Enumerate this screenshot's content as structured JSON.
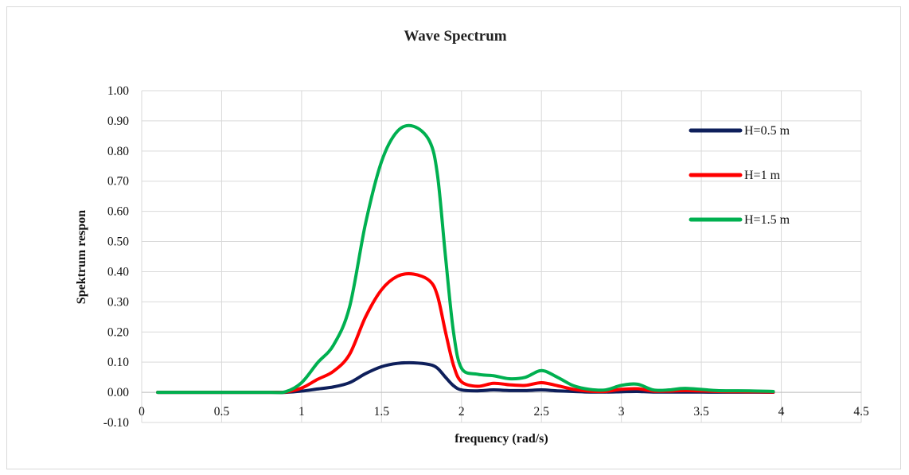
{
  "chart_data": {
    "type": "line",
    "title": "Wave Spectrum",
    "xlabel": "frequency (rad/s)",
    "ylabel": "Spektrum respon",
    "xlim": [
      0,
      4.5
    ],
    "ylim": [
      -0.1,
      1.0
    ],
    "x_ticks": [
      "0",
      "0.5",
      "1",
      "1.5",
      "2",
      "2.5",
      "3",
      "3.5",
      "4",
      "4.5"
    ],
    "y_ticks": [
      "-0.10",
      "0.00",
      "0.10",
      "0.20",
      "0.30",
      "0.40",
      "0.50",
      "0.60",
      "0.70",
      "0.80",
      "0.90",
      "1.00"
    ],
    "grid": true,
    "legend_position": "right",
    "series": [
      {
        "name": "H=0.5 m",
        "color": "#0e1f5b",
        "points": [
          [
            0.1,
            0
          ],
          [
            0.5,
            0
          ],
          [
            0.8,
            0
          ],
          [
            0.9,
            0
          ],
          [
            1.0,
            0.004
          ],
          [
            1.1,
            0.011
          ],
          [
            1.2,
            0.018
          ],
          [
            1.3,
            0.032
          ],
          [
            1.4,
            0.062
          ],
          [
            1.5,
            0.085
          ],
          [
            1.6,
            0.096
          ],
          [
            1.7,
            0.098
          ],
          [
            1.8,
            0.092
          ],
          [
            1.85,
            0.08
          ],
          [
            1.9,
            0.05
          ],
          [
            1.95,
            0.022
          ],
          [
            2.0,
            0.008
          ],
          [
            2.1,
            0.005
          ],
          [
            2.2,
            0.008
          ],
          [
            2.3,
            0.006
          ],
          [
            2.4,
            0.006
          ],
          [
            2.5,
            0.008
          ],
          [
            2.6,
            0.005
          ],
          [
            2.7,
            0.003
          ],
          [
            2.8,
            0.001
          ],
          [
            2.9,
            0.001
          ],
          [
            3.0,
            0.002
          ],
          [
            3.1,
            0.003
          ],
          [
            3.2,
            0.001
          ],
          [
            3.4,
            0.001
          ],
          [
            3.6,
            0.0005
          ],
          [
            3.8,
            0.0005
          ],
          [
            3.95,
            0.0003
          ]
        ]
      },
      {
        "name": "H=1 m",
        "color": "#ff0000",
        "points": [
          [
            0.1,
            0
          ],
          [
            0.5,
            0
          ],
          [
            0.8,
            0
          ],
          [
            0.9,
            0.001
          ],
          [
            1.0,
            0.014
          ],
          [
            1.1,
            0.043
          ],
          [
            1.2,
            0.07
          ],
          [
            1.3,
            0.126
          ],
          [
            1.4,
            0.25
          ],
          [
            1.5,
            0.34
          ],
          [
            1.6,
            0.385
          ],
          [
            1.7,
            0.392
          ],
          [
            1.8,
            0.37
          ],
          [
            1.85,
            0.32
          ],
          [
            1.9,
            0.2
          ],
          [
            1.95,
            0.09
          ],
          [
            2.0,
            0.035
          ],
          [
            2.1,
            0.02
          ],
          [
            2.2,
            0.03
          ],
          [
            2.3,
            0.025
          ],
          [
            2.4,
            0.023
          ],
          [
            2.5,
            0.032
          ],
          [
            2.6,
            0.022
          ],
          [
            2.7,
            0.01
          ],
          [
            2.8,
            0.004
          ],
          [
            2.9,
            0.003
          ],
          [
            3.0,
            0.01
          ],
          [
            3.1,
            0.012
          ],
          [
            3.2,
            0.004
          ],
          [
            3.3,
            0.004
          ],
          [
            3.4,
            0.006
          ],
          [
            3.6,
            0.003
          ],
          [
            3.8,
            0.002
          ],
          [
            3.95,
            0.001
          ]
        ]
      },
      {
        "name": "H=1.5 m",
        "color": "#00b050",
        "points": [
          [
            0.1,
            0
          ],
          [
            0.5,
            0
          ],
          [
            0.8,
            0
          ],
          [
            0.9,
            0.002
          ],
          [
            1.0,
            0.032
          ],
          [
            1.1,
            0.098
          ],
          [
            1.2,
            0.157
          ],
          [
            1.3,
            0.283
          ],
          [
            1.4,
            0.56
          ],
          [
            1.5,
            0.765
          ],
          [
            1.6,
            0.866
          ],
          [
            1.7,
            0.882
          ],
          [
            1.8,
            0.833
          ],
          [
            1.85,
            0.72
          ],
          [
            1.9,
            0.45
          ],
          [
            1.95,
            0.2
          ],
          [
            2.0,
            0.08
          ],
          [
            2.1,
            0.06
          ],
          [
            2.2,
            0.055
          ],
          [
            2.3,
            0.045
          ],
          [
            2.4,
            0.05
          ],
          [
            2.5,
            0.072
          ],
          [
            2.6,
            0.05
          ],
          [
            2.7,
            0.022
          ],
          [
            2.8,
            0.01
          ],
          [
            2.9,
            0.008
          ],
          [
            3.0,
            0.023
          ],
          [
            3.1,
            0.027
          ],
          [
            3.2,
            0.008
          ],
          [
            3.3,
            0.008
          ],
          [
            3.4,
            0.013
          ],
          [
            3.6,
            0.006
          ],
          [
            3.8,
            0.005
          ],
          [
            3.95,
            0.003
          ]
        ]
      }
    ]
  }
}
